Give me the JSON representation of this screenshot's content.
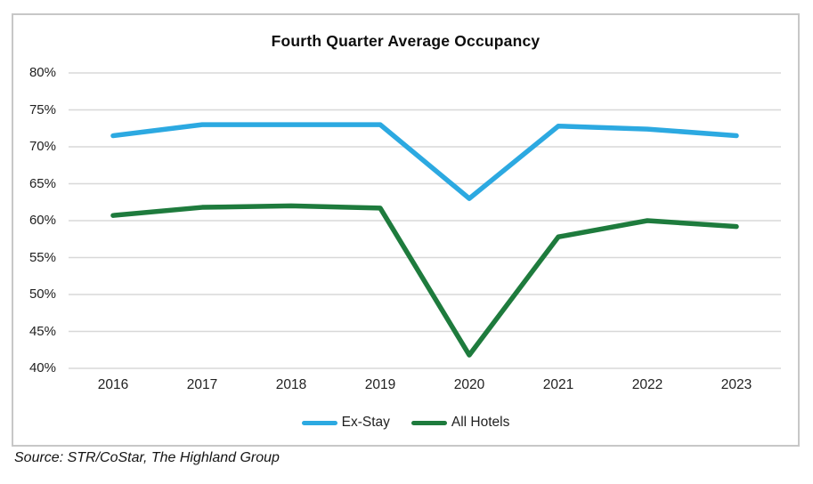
{
  "chart": {
    "title": "Fourth Quarter Average Occupancy",
    "source_note": "Source: STR/CoStar, The Highland Group",
    "legend": [
      {
        "label": "Ex-Stay",
        "color": "#2CA9E1"
      },
      {
        "label": "All Hotels",
        "color": "#1E7B3D"
      }
    ]
  },
  "chart_data": {
    "type": "line",
    "title": "Fourth Quarter Average Occupancy",
    "categories": [
      "2016",
      "2017",
      "2018",
      "2019",
      "2020",
      "2021",
      "2022",
      "2023"
    ],
    "series": [
      {
        "name": "Ex-Stay",
        "color": "#2CA9E1",
        "values": [
          71.5,
          73.0,
          73.0,
          73.0,
          63.0,
          72.8,
          72.4,
          71.5
        ]
      },
      {
        "name": "All Hotels",
        "color": "#1E7B3D",
        "values": [
          60.7,
          61.8,
          62.0,
          61.7,
          41.8,
          57.8,
          60.0,
          59.2
        ]
      }
    ],
    "ylim": [
      40,
      80
    ],
    "ytick_step": 5,
    "ytick_suffix": "%",
    "grid": true,
    "legend_position": "bottom",
    "xlabel": "",
    "ylabel": "",
    "style": {
      "gridline_color": "#d8d8d8",
      "frame_border_color": "#c7c7c7",
      "text_color": "#212121",
      "line_width": 5.5
    }
  }
}
